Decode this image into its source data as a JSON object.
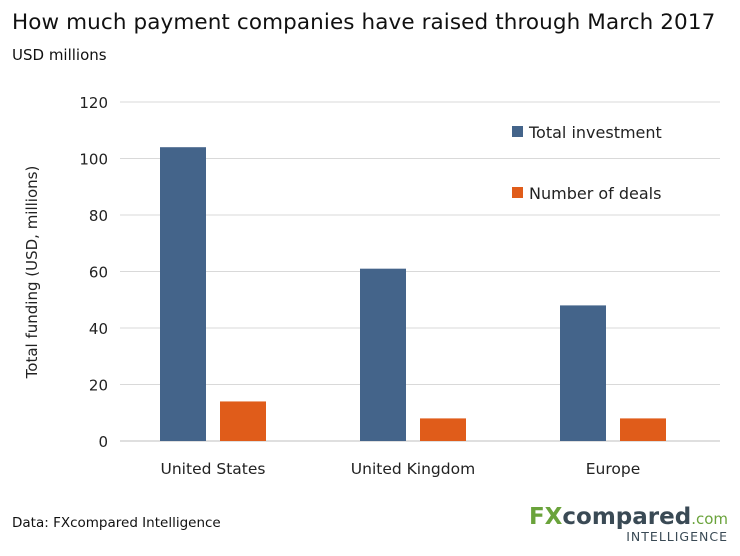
{
  "header": {
    "title": "How much payment companies have raised through March 2017",
    "subtitle": "USD millions"
  },
  "footer": {
    "source": "Data: FXcompared Intelligence",
    "logo_brand_fx": "FX",
    "logo_brand_rest": "compared",
    "logo_brand_tld": ".com",
    "logo_tagline": "INTELLIGENCE"
  },
  "colors": {
    "total_investment": "#44648a",
    "number_of_deals": "#e05c1a",
    "grid": "#d9d9d9",
    "logo_green": "#6aa33b"
  },
  "chart_data": {
    "type": "bar",
    "title": "How much payment companies have raised through March 2017",
    "subtitle": "USD millions",
    "xlabel": "",
    "ylabel": "Total funding (USD, millions)",
    "categories": [
      "United States",
      "United Kingdom",
      "Europe"
    ],
    "series": [
      {
        "name": "Total investment",
        "values": [
          104,
          61,
          48
        ]
      },
      {
        "name": "Number of deals",
        "values": [
          14,
          8,
          8
        ]
      }
    ],
    "ylim": [
      0,
      120
    ],
    "yticks": [
      0,
      20,
      40,
      60,
      80,
      100,
      120
    ],
    "grid": true,
    "legend_position": "top-right"
  }
}
